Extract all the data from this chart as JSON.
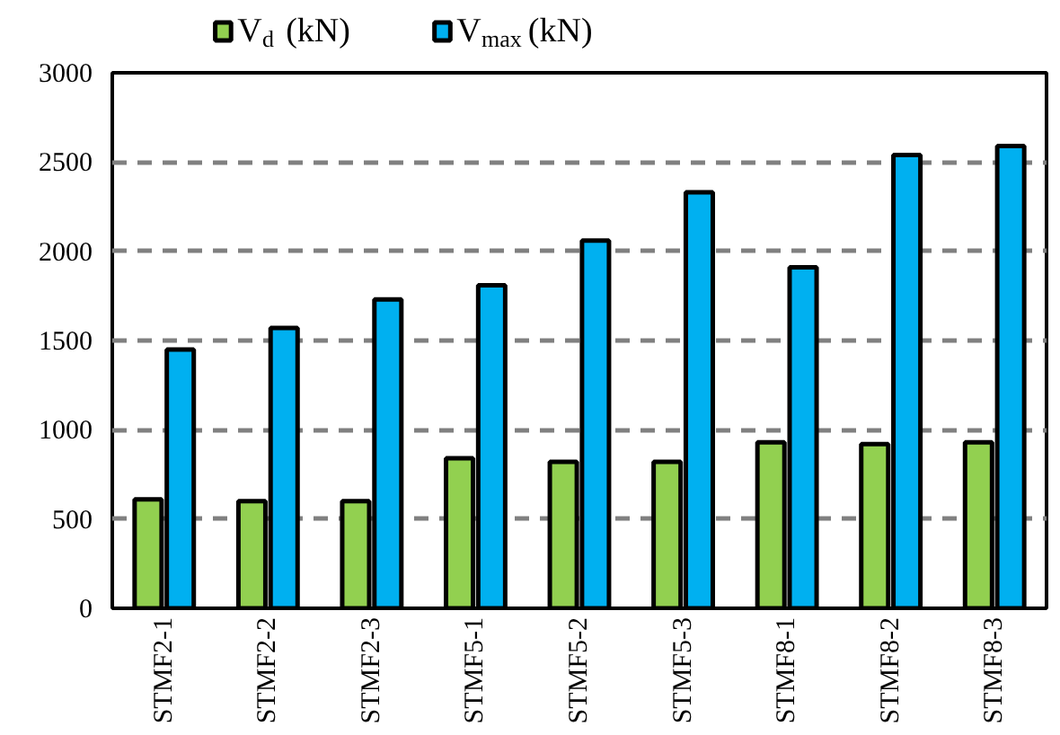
{
  "chart_data": {
    "type": "bar",
    "categories": [
      "STMF2-1",
      "STMF2-2",
      "STMF2-3",
      "STMF5-1",
      "STMF5-2",
      "STMF5-3",
      "STMF8-1",
      "STMF8-2",
      "STMF8-3"
    ],
    "series": [
      {
        "name": "V$_{d}$ (kN)",
        "color": "#92d050",
        "values": [
          610,
          600,
          600,
          840,
          820,
          820,
          930,
          920,
          930
        ]
      },
      {
        "name": "V$_{max}$ (kN)",
        "color": "#00b0f0",
        "values": [
          1450,
          1570,
          1730,
          1810,
          2060,
          2330,
          1910,
          2540,
          2590
        ]
      }
    ],
    "ylim": [
      0,
      3000
    ],
    "yticks": [
      0,
      500,
      1000,
      1500,
      2000,
      2500,
      3000
    ],
    "grid": "y",
    "legend": "top"
  }
}
